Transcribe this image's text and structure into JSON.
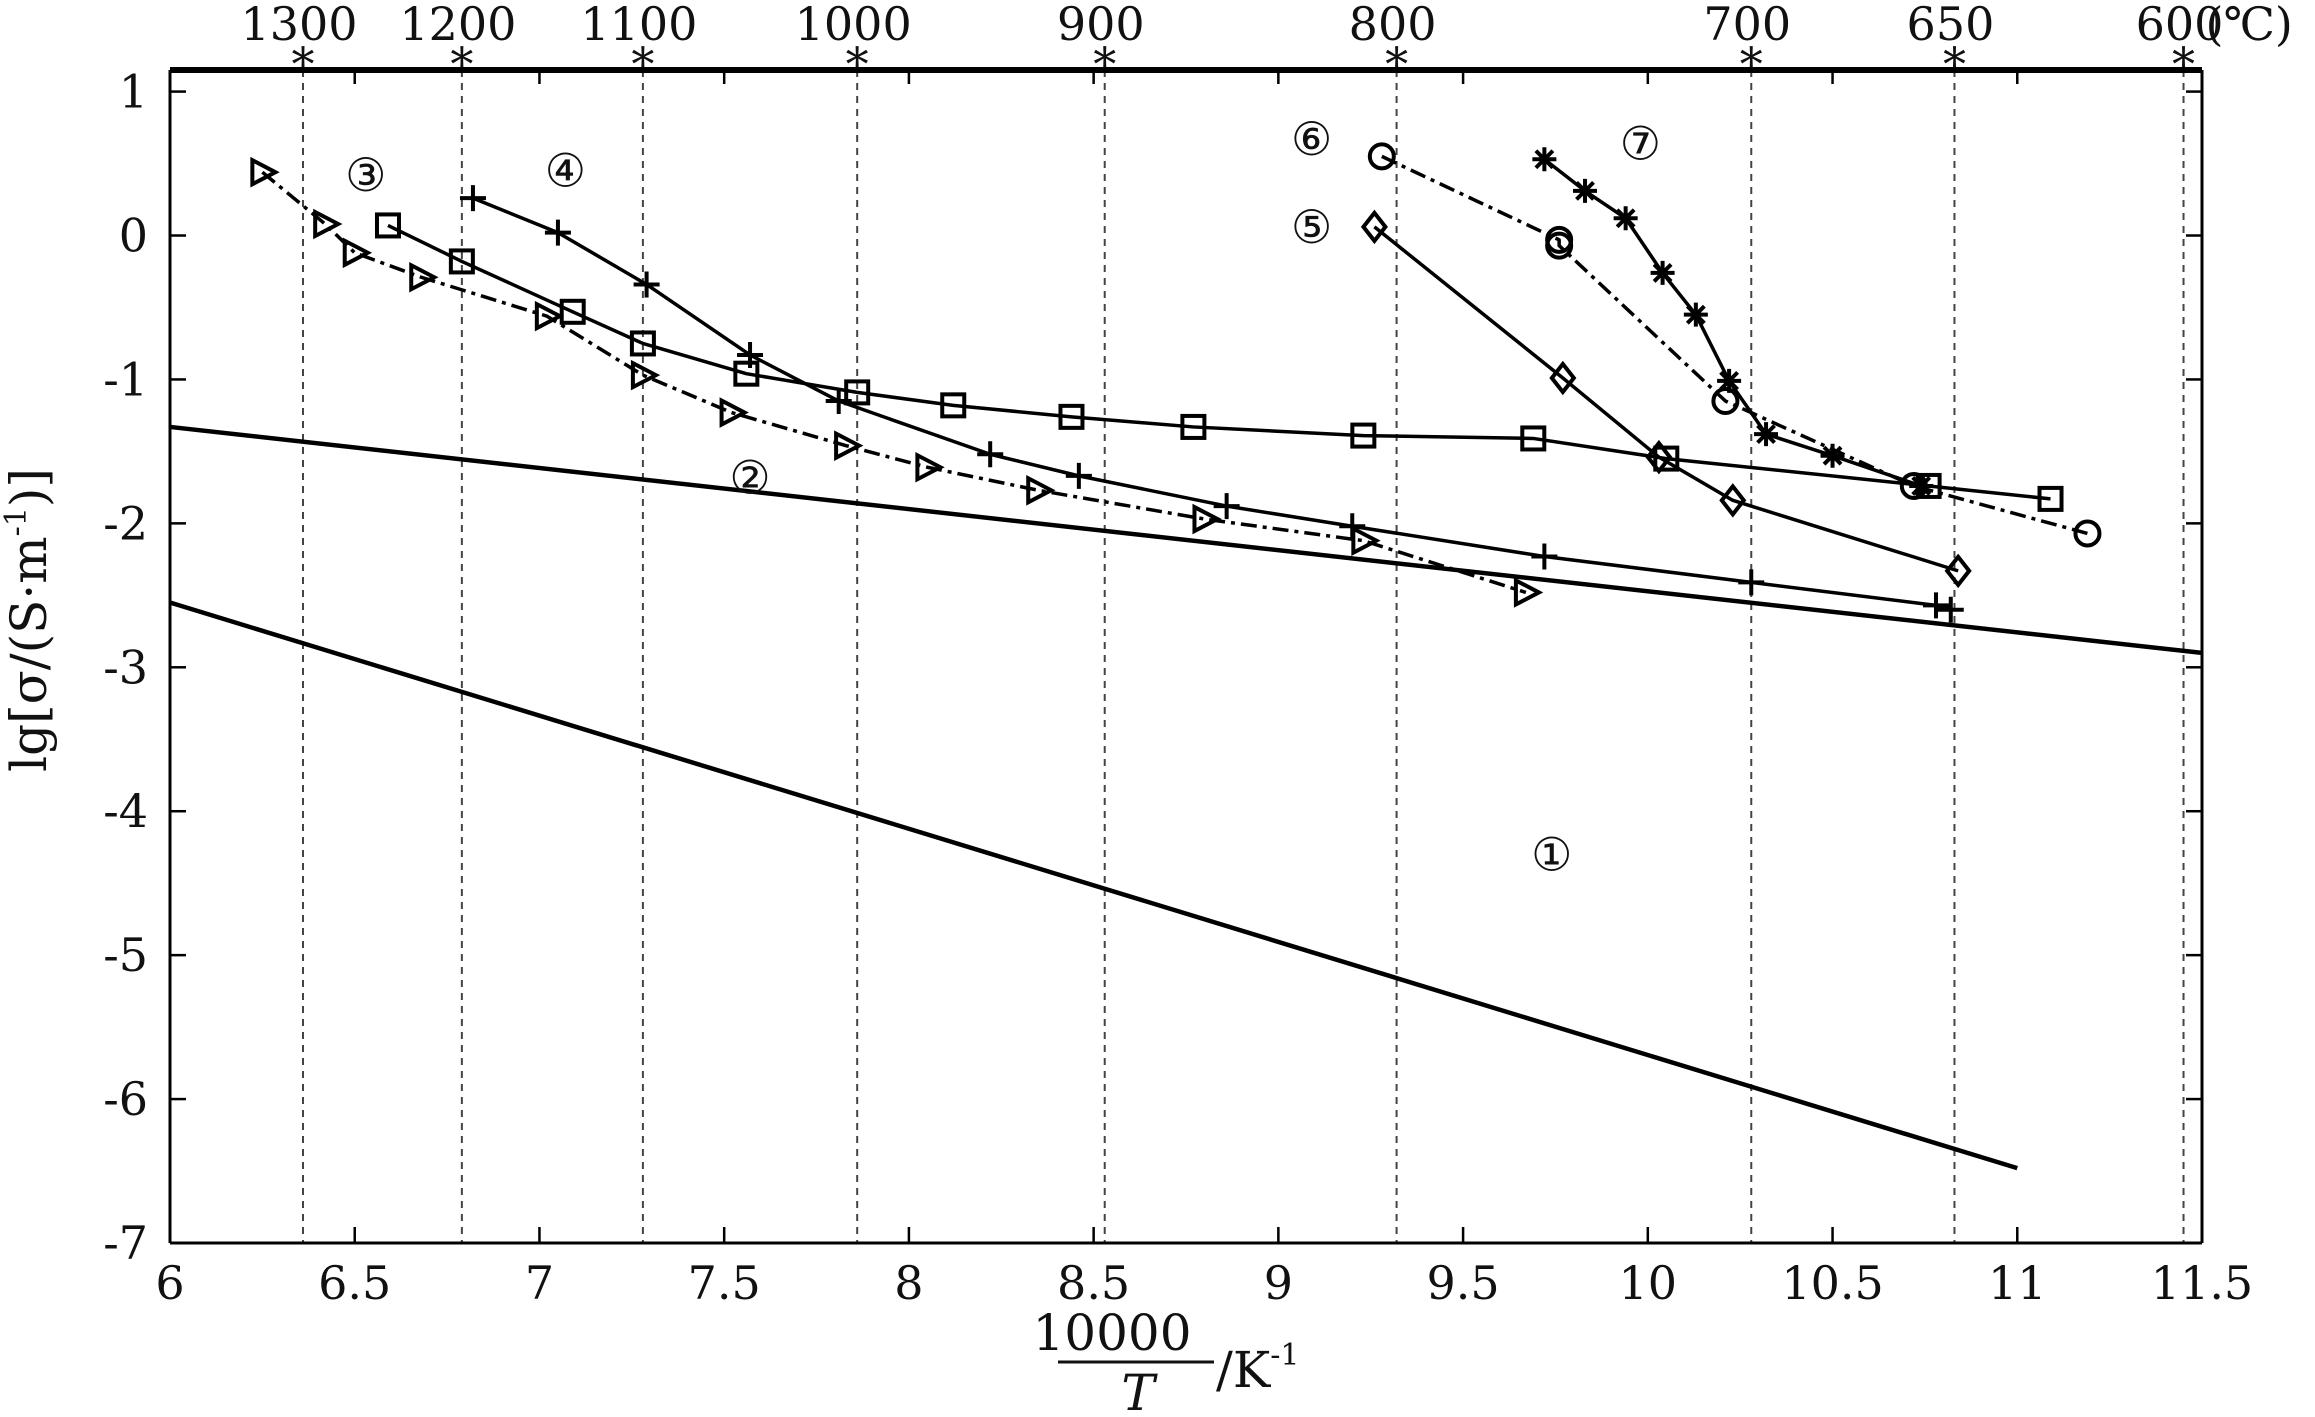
{
  "chart_data": {
    "type": "line",
    "title": "",
    "xlabel_numerator": "10000",
    "xlabel_denominator": "T",
    "xlabel_unit": "/K",
    "xlabel_unit_sup": "-1",
    "ylabel_prefix": "lg[σ/(S·m",
    "ylabel_sup": "-1",
    "ylabel_suffix": ")]",
    "xlim": [
      6,
      11.5
    ],
    "ylim": [
      -7,
      1.15
    ],
    "x_ticks": [
      6,
      6.5,
      7,
      7.5,
      8,
      8.5,
      9,
      9.5,
      10,
      10.5,
      11,
      11.5
    ],
    "x_tick_labels": [
      "6",
      "6.5",
      "7",
      "7.5",
      "8",
      "8.5",
      "9",
      "9.5",
      "10",
      "10.5",
      "11",
      "11.5"
    ],
    "y_ticks": [
      -7,
      -6,
      -5,
      -4,
      -3,
      -2,
      -1,
      0,
      1
    ],
    "y_tick_labels": [
      "-7",
      "-6",
      "-5",
      "-4",
      "-3",
      "-2",
      "-1",
      "0",
      "1"
    ],
    "top_axis": {
      "unit_label": "(℃)",
      "ticks": [
        {
          "label": "1300",
          "x": 6.36
        },
        {
          "label": "1200",
          "x": 6.79
        },
        {
          "label": "1100",
          "x": 7.28
        },
        {
          "label": "1000",
          "x": 7.86
        },
        {
          "label": "900",
          "x": 8.53
        },
        {
          "label": "800",
          "x": 9.32
        },
        {
          "label": "700",
          "x": 10.28
        },
        {
          "label": "650",
          "x": 10.83
        },
        {
          "label": "600",
          "x": 11.45
        }
      ]
    },
    "grid": "vertical dashed at top-axis temperatures",
    "series": [
      {
        "label": "①",
        "marker": "none",
        "style": "solid",
        "x": [
          6.0,
          11.0
        ],
        "y": [
          -2.55,
          -6.48
        ],
        "label_at": [
          9.74,
          -4.3
        ]
      },
      {
        "label": "②",
        "marker": "triangle",
        "style": "dashdot",
        "x": [
          6.25,
          6.42,
          6.5,
          6.68,
          7.02,
          7.28,
          7.52,
          7.83,
          8.05,
          8.35,
          8.8,
          9.23,
          9.67
        ],
        "y": [
          0.44,
          0.08,
          -0.12,
          -0.29,
          -0.56,
          -0.97,
          -1.23,
          -1.46,
          -1.61,
          -1.77,
          -1.97,
          -2.12,
          -2.48
        ],
        "label_at": [
          7.57,
          -1.68
        ]
      },
      {
        "label": "③",
        "marker": "square",
        "style": "solid",
        "x": [
          6.59,
          6.79,
          7.09,
          7.28,
          7.56,
          7.86,
          8.12,
          8.44,
          8.77,
          9.23,
          9.69,
          10.05,
          10.76,
          11.09
        ],
        "y": [
          0.07,
          -0.18,
          -0.53,
          -0.75,
          -0.96,
          -1.09,
          -1.18,
          -1.26,
          -1.33,
          -1.39,
          -1.41,
          -1.55,
          -1.74,
          -1.83
        ],
        "label_at": [
          6.53,
          0.42
        ]
      },
      {
        "label": "④",
        "marker": "plus",
        "style": "solid",
        "x": [
          6.82,
          7.05,
          7.29,
          7.57,
          7.81,
          8.22,
          8.46,
          8.86,
          9.2,
          9.72,
          10.28,
          10.78,
          10.82
        ],
        "y": [
          0.26,
          0.02,
          -0.34,
          -0.83,
          -1.15,
          -1.52,
          -1.67,
          -1.88,
          -2.02,
          -2.23,
          -2.41,
          -2.57,
          -2.6
        ],
        "label_at": [
          7.07,
          0.45
        ]
      },
      {
        "label": "⑤",
        "marker": "diamond",
        "style": "solid",
        "x": [
          9.26,
          9.77,
          10.03,
          10.23,
          10.84
        ],
        "y": [
          0.06,
          -0.99,
          -1.54,
          -1.84,
          -2.33
        ],
        "label_at": [
          9.09,
          0.06
        ]
      },
      {
        "label": "⑥",
        "marker": "circle",
        "style": "dashdot",
        "x": [
          9.28,
          9.76,
          9.76,
          10.21,
          10.72,
          11.19
        ],
        "y": [
          0.55,
          -0.03,
          -0.07,
          -1.15,
          -1.74,
          -2.07
        ],
        "label_at": [
          9.09,
          0.67
        ]
      },
      {
        "label": "⑦",
        "marker": "asterisk",
        "style": "solid",
        "x": [
          9.72,
          9.83,
          9.94,
          10.04,
          10.13,
          10.22,
          10.32,
          10.5,
          10.74
        ],
        "y": [
          0.53,
          0.31,
          0.12,
          -0.26,
          -0.55,
          -1.01,
          -1.38,
          -1.53,
          -1.74
        ],
        "label_at": [
          9.98,
          0.64
        ]
      },
      {
        "label": "",
        "marker": "none",
        "style": "solid",
        "x": [
          6.0,
          11.5
        ],
        "y": [
          -1.33,
          -2.9
        ]
      }
    ]
  }
}
